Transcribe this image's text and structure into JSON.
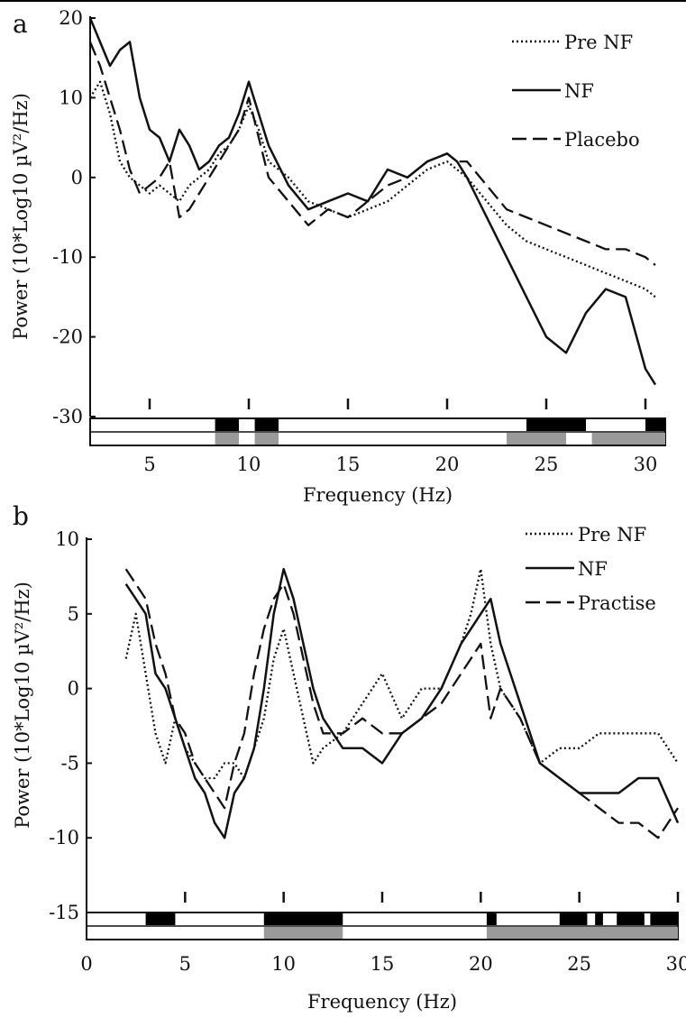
{
  "chart_data": [
    {
      "type": "line",
      "panel_label": "a",
      "xlabel": "Frequency (Hz)",
      "ylabel": "Power (10*Log10 µV²/Hz)",
      "xlim": [
        2,
        31
      ],
      "ylim": [
        -30,
        20
      ],
      "x_ticks": [
        5,
        10,
        15,
        20,
        25,
        30
      ],
      "x_tick_labels": [
        "5",
        "10",
        "15",
        "20",
        "25",
        "30"
      ],
      "y_ticks": [
        20,
        10,
        0,
        -10,
        -20,
        -30
      ],
      "y_tick_labels": [
        "20",
        "10",
        "0",
        "-10",
        "-20",
        "-30"
      ],
      "legend_position": "top-right",
      "series": [
        {
          "name": "Pre NF",
          "dash": "dotted",
          "x": [
            2,
            2.5,
            3,
            3.5,
            4,
            4.5,
            5,
            5.5,
            6,
            6.5,
            7,
            7.5,
            8,
            8.5,
            9,
            9.5,
            10,
            10.5,
            11,
            12,
            13,
            14,
            15,
            16,
            17,
            18,
            19,
            20,
            20.5,
            21,
            22,
            23,
            24,
            25,
            26,
            27,
            28,
            29,
            30,
            30.5
          ],
          "y": [
            10,
            12,
            8,
            2,
            0,
            -1,
            -2,
            -1,
            -2,
            -3,
            -1,
            0,
            1,
            3,
            4,
            6,
            9,
            6,
            2,
            0,
            -3,
            -4,
            -5,
            -4,
            -3,
            -1,
            1,
            2,
            1,
            0,
            -3,
            -6,
            -8,
            -9,
            -10,
            -11,
            -12,
            -13,
            -14,
            -15
          ]
        },
        {
          "name": "NF",
          "dash": "solid",
          "x": [
            2,
            2.5,
            3,
            3.5,
            4,
            4.5,
            5,
            5.5,
            6,
            6.5,
            7,
            7.5,
            8,
            8.5,
            9,
            9.5,
            10,
            10.5,
            11,
            12,
            13,
            14,
            15,
            16,
            17,
            18,
            19,
            20,
            20.5,
            21,
            22,
            23,
            24,
            25,
            26,
            27,
            28,
            29,
            30,
            30.5
          ],
          "y": [
            20,
            17,
            14,
            16,
            17,
            10,
            6,
            5,
            2,
            6,
            4,
            1,
            2,
            4,
            5,
            8,
            12,
            8,
            4,
            -1,
            -4,
            -3,
            -2,
            -3,
            1,
            0,
            2,
            3,
            2,
            0,
            -5,
            -10,
            -15,
            -20,
            -22,
            -17,
            -14,
            -15,
            -24,
            -26
          ]
        },
        {
          "name": "Placebo",
          "dash": "dashed",
          "x": [
            2,
            2.5,
            3,
            3.5,
            4,
            4.5,
            5,
            5.5,
            6,
            6.5,
            7,
            7.5,
            8,
            8.5,
            9,
            9.5,
            10,
            10.5,
            11,
            12,
            13,
            14,
            15,
            16,
            17,
            18,
            19,
            20,
            20.5,
            21,
            22,
            23,
            24,
            25,
            26,
            27,
            28,
            29,
            30,
            30.5
          ],
          "y": [
            17,
            14,
            10,
            6,
            1,
            -2,
            -1,
            0,
            2,
            -5,
            -4,
            -2,
            0,
            2,
            4,
            6,
            10,
            5,
            0,
            -3,
            -6,
            -4,
            -5,
            -3,
            -1,
            0,
            2,
            3,
            2,
            2,
            -1,
            -4,
            -5,
            -6,
            -7,
            -8,
            -9,
            -9,
            -10,
            -11
          ]
        }
      ],
      "significance_bars": {
        "black_ranges": [
          [
            8.3,
            9.5
          ],
          [
            10.3,
            11.5
          ],
          [
            24,
            27
          ],
          [
            30,
            31
          ]
        ],
        "gray_ranges": [
          [
            8.3,
            9.5
          ],
          [
            10.3,
            11.5
          ],
          [
            23,
            26
          ],
          [
            27.3,
            31
          ]
        ]
      }
    },
    {
      "type": "line",
      "panel_label": "b",
      "xlabel": "Frequency (Hz)",
      "ylabel": "Power (10*Log10 µV²/Hz)",
      "xlim": [
        0,
        30
      ],
      "ylim": [
        -15,
        10
      ],
      "x_ticks": [
        0,
        5,
        10,
        15,
        20,
        25,
        30
      ],
      "x_tick_labels": [
        "0",
        "5",
        "10",
        "15",
        "20",
        "25",
        "30"
      ],
      "y_ticks": [
        10,
        5,
        0,
        -5,
        -10,
        -15
      ],
      "y_tick_labels": [
        "10",
        "5",
        "0",
        "-5",
        "-10",
        "-15"
      ],
      "legend_position": "top-right",
      "series": [
        {
          "name": "Pre NF",
          "dash": "dotted",
          "x": [
            2,
            2.5,
            3,
            3.5,
            4,
            4.5,
            5,
            5.5,
            6,
            6.5,
            7,
            7.5,
            8,
            8.5,
            9,
            9.5,
            10,
            10.5,
            11,
            11.5,
            12,
            13,
            14,
            15,
            16,
            17,
            18,
            19,
            19.5,
            20,
            20.5,
            21,
            22,
            23,
            24,
            25,
            26,
            27,
            28,
            29,
            30
          ],
          "y": [
            2,
            5,
            1,
            -3,
            -5,
            -2,
            -4,
            -5,
            -6,
            -6,
            -5,
            -5,
            -6,
            -4,
            -2,
            2,
            4,
            1,
            -2,
            -5,
            -4,
            -3,
            -1,
            1,
            -2,
            0,
            0,
            3,
            5,
            8,
            3,
            0,
            -2,
            -5,
            -4,
            -4,
            -3,
            -3,
            -3,
            -3,
            -5
          ]
        },
        {
          "name": "NF",
          "dash": "solid",
          "x": [
            2,
            2.5,
            3,
            3.5,
            4,
            4.5,
            5,
            5.5,
            6,
            6.5,
            7,
            7.5,
            8,
            8.5,
            9,
            9.5,
            10,
            10.5,
            11,
            11.5,
            12,
            13,
            14,
            15,
            16,
            17,
            18,
            19,
            19.5,
            20,
            20.5,
            21,
            22,
            23,
            24,
            25,
            26,
            27,
            28,
            29,
            30
          ],
          "y": [
            7,
            6,
            5,
            1,
            0,
            -2,
            -4,
            -6,
            -7,
            -9,
            -10,
            -7,
            -6,
            -4,
            0,
            5,
            8,
            6,
            3,
            0,
            -2,
            -4,
            -4,
            -5,
            -3,
            -2,
            0,
            3,
            4,
            5,
            6,
            3,
            -1,
            -5,
            -6,
            -7,
            -7,
            -7,
            -6,
            -6,
            -9
          ]
        },
        {
          "name": "Practise",
          "dash": "dashed",
          "x": [
            2,
            2.5,
            3,
            3.5,
            4,
            4.5,
            5,
            5.5,
            6,
            6.5,
            7,
            7.5,
            8,
            8.5,
            9,
            9.5,
            10,
            10.5,
            11,
            11.5,
            12,
            13,
            14,
            15,
            16,
            17,
            18,
            19,
            19.5,
            20,
            20.5,
            21,
            22,
            23,
            24,
            25,
            26,
            27,
            28,
            29,
            30
          ],
          "y": [
            8,
            7,
            6,
            3,
            1,
            -2,
            -3,
            -5,
            -6,
            -7,
            -8,
            -5,
            -3,
            1,
            4,
            6,
            7,
            5,
            2,
            -1,
            -3,
            -3,
            -2,
            -3,
            -3,
            -2,
            -1,
            1,
            2,
            3,
            -2,
            0,
            -2,
            -5,
            -6,
            -7,
            -8,
            -9,
            -9,
            -10,
            -8
          ]
        }
      ],
      "significance_bars": {
        "black_ranges": [
          [
            3,
            4.5
          ],
          [
            9,
            13
          ],
          [
            20.3,
            20.8
          ],
          [
            24,
            25.4
          ],
          [
            25.8,
            26.2
          ],
          [
            26.9,
            28.3
          ],
          [
            28.6,
            30
          ]
        ],
        "gray_ranges": [
          [
            9,
            13
          ],
          [
            20.3,
            30
          ]
        ]
      }
    }
  ],
  "styles": {
    "line_color": "#111111",
    "bar_black": "#000000",
    "bar_gray": "#9a9a9a"
  }
}
